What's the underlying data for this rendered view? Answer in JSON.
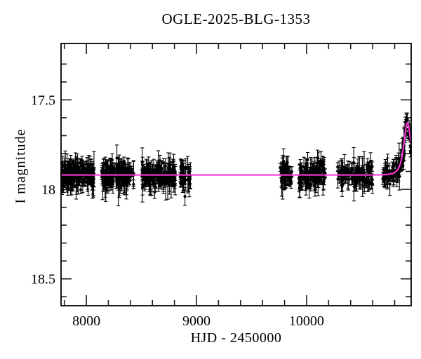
{
  "title": "OGLE-2025-BLG-1353",
  "axes": {
    "x_label": "HJD - 2450000",
    "y_label": "I magnitude",
    "x_tick_labels": [
      "8000",
      "9000",
      "10000"
    ],
    "y_tick_labels": [
      "17.5",
      "18",
      "18.5"
    ]
  },
  "chart_data": {
    "type": "scatter",
    "title": "OGLE-2025-BLG-1353",
    "xlabel": "HJD - 2450000",
    "ylabel": "I magnitude",
    "xlim": [
      7770,
      10950
    ],
    "ylim": [
      17.185,
      18.65
    ],
    "y_axis_inverted": true,
    "grid": false,
    "x_major_ticks": [
      8000,
      9000,
      10000
    ],
    "x_minor_step": 200,
    "y_major_ticks": [
      17.5,
      18.0,
      18.5
    ],
    "y_minor_step": 0.1,
    "point_color": "#000000",
    "model_color": "#ff35dd",
    "baseline_mag": 17.92,
    "model": {
      "type": "point-lens (Paczynski) microlensing curve",
      "I0": 17.92,
      "t0": 10916,
      "tE": 38,
      "u0": 1.05,
      "peak_mag": 17.63,
      "peak_t": 10916
    },
    "observing_seasons": [
      {
        "t_start": 7776,
        "t_end": 8070,
        "n_points": 170,
        "mean_mag": 17.92
      },
      {
        "t_start": 8140,
        "t_end": 8430,
        "n_points": 150,
        "mean_mag": 17.92
      },
      {
        "t_start": 8505,
        "t_end": 8810,
        "n_points": 155,
        "mean_mag": 17.92
      },
      {
        "t_start": 8850,
        "t_end": 8945,
        "n_points": 32,
        "mean_mag": 17.92
      },
      {
        "t_start": 9760,
        "t_end": 9868,
        "n_points": 48,
        "mean_mag": 17.92
      },
      {
        "t_start": 9930,
        "t_end": 10170,
        "n_points": 115,
        "mean_mag": 17.92
      },
      {
        "t_start": 10280,
        "t_end": 10600,
        "n_points": 100,
        "mean_mag": 17.92
      },
      {
        "t_start": 10690,
        "t_end": 10950,
        "n_points": 88,
        "mean_mag": "follows model rise to ~17.57"
      }
    ],
    "scatter_sigma_mag": 0.032,
    "errorbar_mag_range": [
      0.022,
      0.11
    ]
  }
}
